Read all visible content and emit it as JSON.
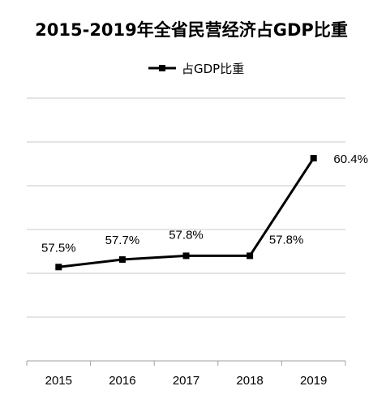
{
  "chart_data": {
    "type": "line",
    "title": "2015-2019年全省民营经济占GDP比重",
    "categories": [
      "2015",
      "2016",
      "2017",
      "2018",
      "2019"
    ],
    "series": [
      {
        "name": "占GDP比重",
        "values": [
          57.5,
          57.7,
          57.8,
          57.8,
          60.4
        ],
        "labels": [
          "57.5%",
          "57.7%",
          "57.8%",
          "57.8%",
          "60.4%"
        ]
      }
    ],
    "ylim": [
      55,
      62
    ],
    "grid": true,
    "legend_position": "top",
    "line_color": "#000000"
  }
}
